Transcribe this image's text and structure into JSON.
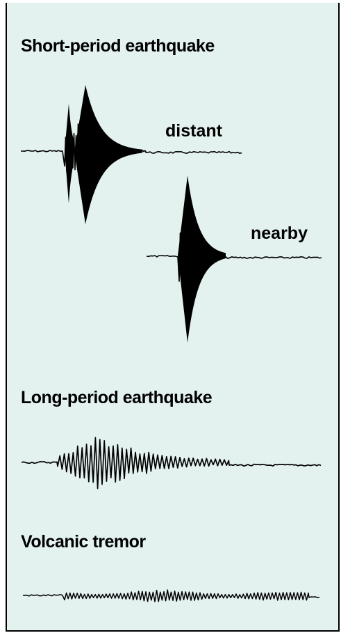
{
  "sections": [
    {
      "title": "Short-period earthquake"
    },
    {
      "title": "Long-period earthquake"
    },
    {
      "title": "Volcanic tremor"
    }
  ],
  "labels": {
    "distant": "distant",
    "nearby": "nearby"
  },
  "colors": {
    "background": "#e3f1ef",
    "border": "#000000",
    "trace": "#000000"
  }
}
